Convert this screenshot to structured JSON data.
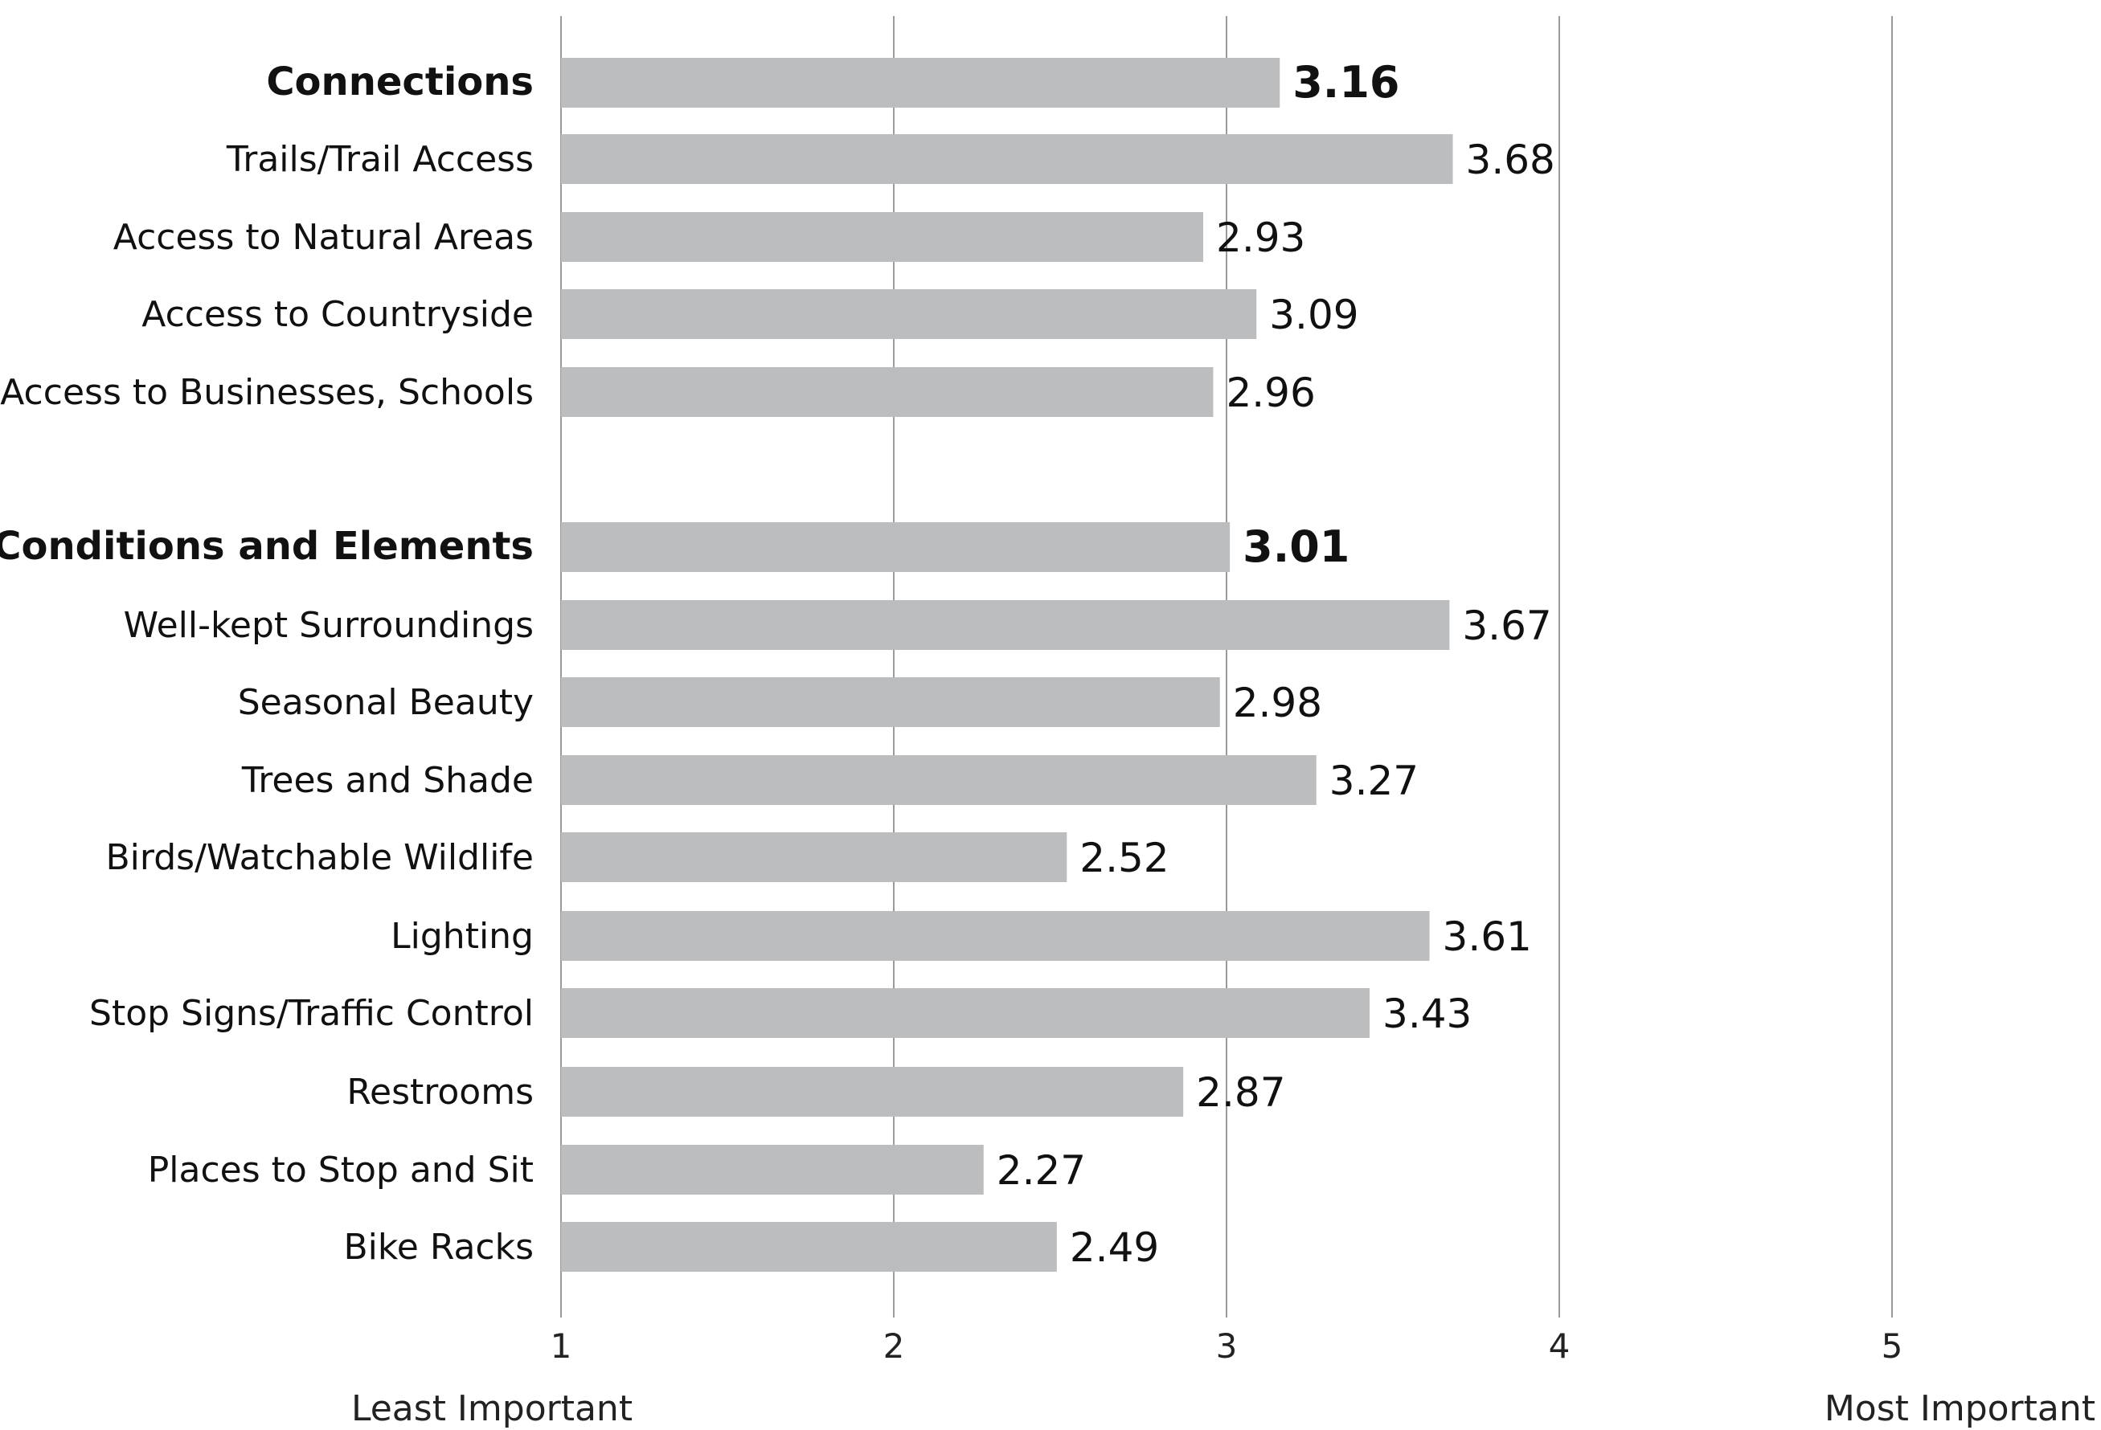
{
  "chart_data": {
    "type": "bar",
    "orientation": "horizontal",
    "categories": [
      "Connections",
      "Trails/Trail Access",
      "Access to Natural Areas",
      "Access to Countryside",
      "Access to Businesses, Schools",
      "Conditions and Elements",
      "Well-kept Surroundings",
      "Seasonal Beauty",
      "Trees and Shade",
      "Birds/Watchable Wildlife",
      "Lighting",
      "Stop Signs/Traffic Control",
      "Restrooms",
      "Places to Stop and Sit",
      "Bike Racks"
    ],
    "values": [
      3.16,
      3.68,
      2.93,
      3.09,
      2.96,
      3.01,
      3.67,
      2.98,
      3.27,
      2.52,
      3.61,
      3.43,
      2.87,
      2.27,
      2.49
    ],
    "value_labels": [
      "3.16",
      "3.68",
      "2.93",
      "3.09",
      "2.96",
      "3.01",
      "3.67",
      "2.98",
      "3.27",
      "2.52",
      "3.61",
      "3.43",
      "2.87",
      "2.27",
      "2.49"
    ],
    "group_headers": [
      "Connections",
      "Conditions and Elements"
    ],
    "xlim": [
      1,
      5
    ],
    "xticks": [
      "1",
      "2",
      "3",
      "4",
      "5"
    ],
    "x_low_label": "Least Important",
    "x_high_label": "Most Important",
    "grid": true,
    "bar_color": "#bcbdbf"
  }
}
